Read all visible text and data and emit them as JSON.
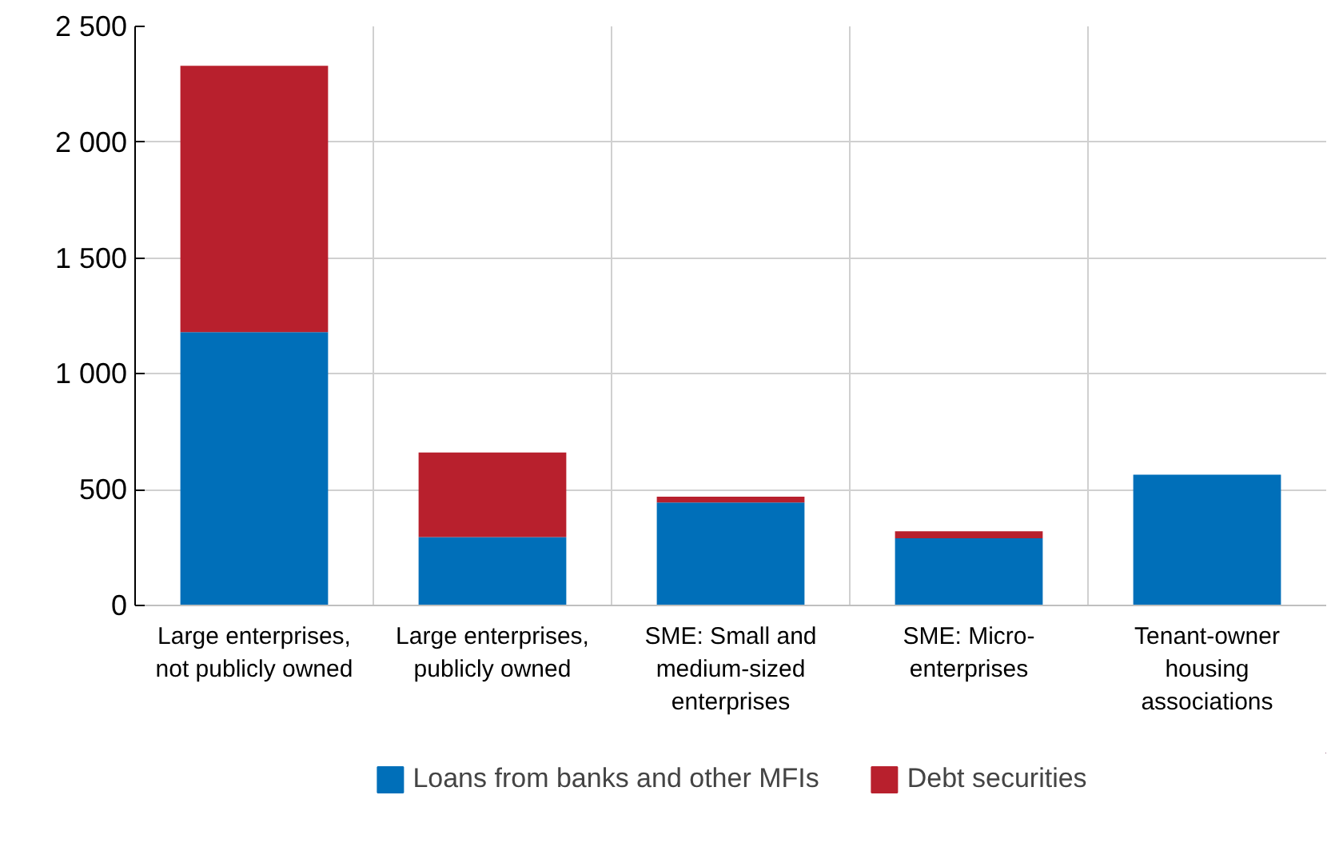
{
  "chart_data": {
    "type": "bar",
    "stacked": true,
    "categories": [
      "Large enterprises, not publicly owned",
      "Large enterprises, publicly owned",
      "SME: Small and medium-sized enterprises",
      "SME: Micro-enterprises",
      "Tenant-owner housing associations"
    ],
    "series": [
      {
        "name": "Loans from banks and other MFIs",
        "color": "#006fb9",
        "values": [
          1180,
          295,
          445,
          290,
          565
        ]
      },
      {
        "name": "Debt securities",
        "color": "#b8202d",
        "values": [
          1150,
          365,
          25,
          30,
          0
        ]
      }
    ],
    "ylim": [
      0,
      2500
    ],
    "yticks": [
      0,
      500,
      {
        "value": 1000,
        "label": "1 000"
      },
      {
        "value": 1500,
        "label": "1 500"
      },
      {
        "value": 2000,
        "label": "2 000"
      },
      {
        "value": 2500,
        "label": "2 500"
      }
    ],
    "grid": true,
    "legend": "bottom"
  }
}
